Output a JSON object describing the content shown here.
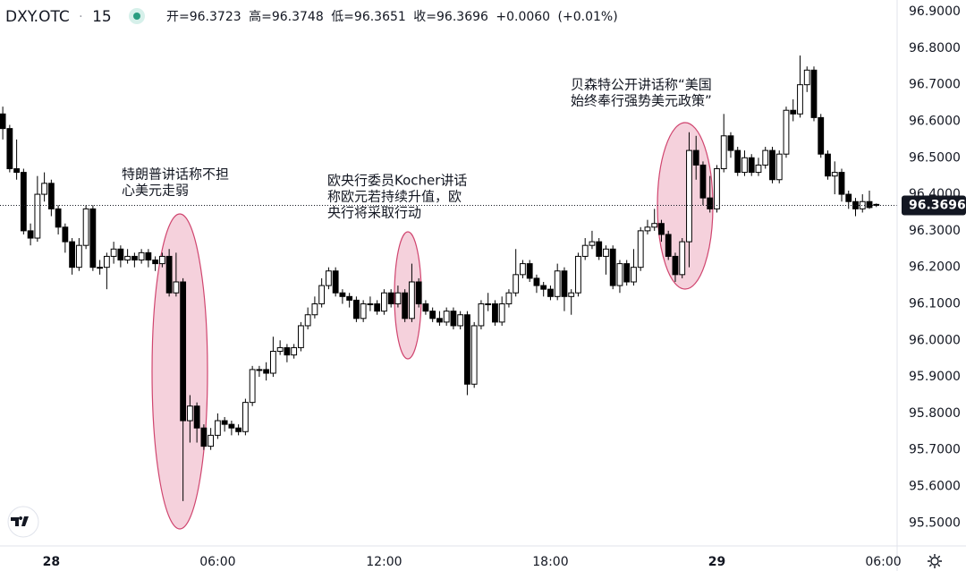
{
  "header": {
    "symbol": "DXY.OTC",
    "interval": "15",
    "open_label": "开=",
    "high_label": "高=",
    "low_label": "低=",
    "close_label": "收=",
    "change_label": "+0.0060",
    "change_pct_label": "(+0.01%)"
  },
  "chart_data": {
    "type": "candlestick",
    "x": [
      -1.75,
      -1.5,
      -1.25,
      -1,
      -0.75,
      -0.5,
      -0.25,
      0,
      0.25,
      0.5,
      0.75,
      1,
      1.25,
      1.5,
      1.75,
      2,
      2.25,
      2.5,
      2.75,
      3,
      3.25,
      3.5,
      3.75,
      4,
      4.25,
      4.5,
      4.75,
      5,
      5.25,
      5.5,
      5.75,
      6,
      6.25,
      6.5,
      6.75,
      7,
      7.25,
      7.5,
      7.75,
      8,
      8.25,
      8.5,
      8.75,
      9,
      9.25,
      9.5,
      9.75,
      10,
      10.25,
      10.5,
      10.75,
      11,
      11.25,
      11.5,
      11.75,
      12,
      12.25,
      12.5,
      12.75,
      13,
      13.25,
      13.5,
      13.75,
      14,
      14.25,
      14.5,
      14.75,
      15,
      15.25,
      15.5,
      15.75,
      16,
      16.25,
      16.5,
      16.75,
      17,
      17.25,
      17.5,
      17.75,
      18,
      18.25,
      18.5,
      18.75,
      19,
      19.25,
      19.5,
      19.75,
      20,
      20.25,
      20.5,
      20.75,
      21,
      21.25,
      21.5,
      21.75,
      22,
      22.25,
      22.5,
      22.75,
      23,
      23.25,
      23.5,
      23.75,
      24,
      24.25,
      24.5,
      24.75,
      25,
      25.25,
      25.5,
      25.75,
      26,
      26.25,
      26.5,
      26.75,
      27,
      27.25,
      27.5,
      27.75,
      28,
      28.25,
      28.5,
      28.75,
      29,
      29.25,
      29.5,
      29.75
    ],
    "open": [
      96.62,
      96.58,
      96.47,
      96.46,
      96.3,
      96.28,
      96.4,
      96.43,
      96.36,
      96.31,
      96.27,
      96.2,
      96.26,
      96.36,
      96.2,
      96.2,
      96.23,
      96.25,
      96.22,
      96.23,
      96.22,
      96.24,
      96.22,
      96.21,
      96.23,
      96.13,
      96.16,
      95.78,
      95.82,
      95.76,
      95.71,
      95.74,
      95.78,
      95.77,
      95.76,
      95.75,
      95.83,
      95.92,
      95.92,
      95.91,
      95.97,
      95.98,
      95.96,
      95.98,
      96.04,
      96.07,
      96.1,
      96.15,
      96.19,
      96.13,
      96.12,
      96.11,
      96.06,
      96.1,
      96.1,
      96.08,
      96.13,
      96.1,
      96.13,
      96.06,
      96.16,
      96.1,
      96.08,
      96.06,
      96.05,
      96.08,
      96.04,
      96.07,
      95.88,
      96.04,
      96.1,
      96.1,
      96.05,
      96.1,
      96.13,
      96.18,
      96.21,
      96.17,
      96.15,
      96.14,
      96.12,
      96.19,
      96.12,
      96.13,
      96.23,
      96.26,
      96.27,
      96.23,
      96.25,
      96.15,
      96.21,
      96.16,
      96.2,
      96.3,
      96.31,
      96.32,
      96.29,
      96.23,
      96.18,
      96.27,
      96.52,
      96.48,
      96.39,
      96.36,
      96.47,
      96.56,
      96.52,
      96.46,
      96.5,
      96.46,
      96.48,
      96.52,
      96.44,
      96.51,
      96.63,
      96.62,
      96.7,
      96.74,
      96.61,
      96.51,
      96.45,
      96.46,
      96.4,
      96.38,
      96.36,
      96.38,
      96.3723
    ],
    "high": [
      96.64,
      96.59,
      96.55,
      96.47,
      96.32,
      96.45,
      96.46,
      96.44,
      96.37,
      96.32,
      96.28,
      96.28,
      96.37,
      96.37,
      96.22,
      96.24,
      96.27,
      96.26,
      96.25,
      96.24,
      96.25,
      96.25,
      96.23,
      96.24,
      96.25,
      96.24,
      96.17,
      95.85,
      95.83,
      95.77,
      95.76,
      95.8,
      95.79,
      95.78,
      95.77,
      95.84,
      95.93,
      95.93,
      95.94,
      96.01,
      96.0,
      95.99,
      95.99,
      96.05,
      96.09,
      96.12,
      96.17,
      96.2,
      96.2,
      96.14,
      96.13,
      96.12,
      96.11,
      96.12,
      96.11,
      96.14,
      96.14,
      96.15,
      96.14,
      96.21,
      96.17,
      96.11,
      96.09,
      96.08,
      96.09,
      96.09,
      96.08,
      96.08,
      96.05,
      96.11,
      96.13,
      96.11,
      96.12,
      96.14,
      96.25,
      96.22,
      96.22,
      96.18,
      96.16,
      96.15,
      96.21,
      96.2,
      96.14,
      96.24,
      96.28,
      96.3,
      96.28,
      96.26,
      96.26,
      96.22,
      96.22,
      96.25,
      96.31,
      96.33,
      96.36,
      96.33,
      96.3,
      96.24,
      96.28,
      96.57,
      96.56,
      96.49,
      96.45,
      96.48,
      96.62,
      96.57,
      96.53,
      96.52,
      96.51,
      96.5,
      96.53,
      96.53,
      96.52,
      96.64,
      96.66,
      96.78,
      96.75,
      96.75,
      96.62,
      96.52,
      96.49,
      96.47,
      96.41,
      96.39,
      96.4,
      96.41,
      96.3748
    ],
    "low": [
      96.55,
      96.46,
      96.44,
      96.29,
      96.26,
      96.27,
      96.38,
      96.34,
      96.29,
      96.24,
      96.18,
      96.19,
      96.25,
      96.19,
      96.18,
      96.14,
      96.21,
      96.2,
      96.21,
      96.2,
      96.21,
      96.2,
      96.19,
      96.2,
      96.12,
      96.12,
      95.56,
      95.72,
      95.72,
      95.7,
      95.7,
      95.73,
      95.75,
      95.74,
      95.74,
      95.74,
      95.82,
      95.9,
      95.89,
      95.9,
      95.96,
      95.94,
      95.95,
      95.97,
      96.03,
      96.06,
      96.09,
      96.14,
      96.12,
      96.1,
      96.09,
      96.05,
      96.05,
      96.08,
      96.07,
      96.07,
      96.09,
      96.09,
      96.05,
      96.05,
      96.09,
      96.07,
      96.05,
      96.04,
      96.04,
      96.03,
      96.03,
      95.85,
      95.87,
      96.03,
      96.08,
      96.04,
      96.04,
      96.09,
      96.12,
      96.17,
      96.16,
      96.13,
      96.12,
      96.11,
      96.11,
      96.08,
      96.07,
      96.12,
      96.22,
      96.25,
      96.22,
      96.18,
      96.14,
      96.13,
      96.15,
      96.15,
      96.19,
      96.29,
      96.3,
      96.27,
      96.22,
      96.16,
      96.17,
      96.2,
      96.44,
      96.37,
      96.35,
      96.35,
      96.46,
      96.5,
      96.45,
      96.45,
      96.45,
      96.45,
      96.47,
      96.43,
      96.43,
      96.5,
      96.6,
      96.61,
      96.68,
      96.6,
      96.5,
      96.44,
      96.4,
      96.38,
      96.36,
      96.34,
      96.35,
      96.36,
      96.3651
    ],
    "close": [
      96.58,
      96.47,
      96.46,
      96.3,
      96.28,
      96.4,
      96.43,
      96.36,
      96.31,
      96.27,
      96.2,
      96.26,
      96.36,
      96.2,
      96.2,
      96.23,
      96.25,
      96.22,
      96.23,
      96.22,
      96.24,
      96.22,
      96.21,
      96.23,
      96.13,
      96.16,
      95.78,
      95.82,
      95.76,
      95.71,
      95.74,
      95.78,
      95.77,
      95.76,
      95.75,
      95.83,
      95.92,
      95.92,
      95.91,
      95.97,
      95.98,
      95.96,
      95.98,
      96.04,
      96.07,
      96.1,
      96.15,
      96.19,
      96.13,
      96.12,
      96.11,
      96.06,
      96.1,
      96.1,
      96.08,
      96.13,
      96.1,
      96.13,
      96.06,
      96.16,
      96.1,
      96.08,
      96.06,
      96.05,
      96.08,
      96.04,
      96.07,
      95.88,
      96.04,
      96.1,
      96.1,
      96.05,
      96.1,
      96.13,
      96.18,
      96.21,
      96.17,
      96.15,
      96.14,
      96.12,
      96.19,
      96.12,
      96.13,
      96.23,
      96.26,
      96.27,
      96.23,
      96.25,
      96.15,
      96.21,
      96.16,
      96.2,
      96.3,
      96.31,
      96.32,
      96.29,
      96.23,
      96.18,
      96.27,
      96.52,
      96.48,
      96.39,
      96.36,
      96.47,
      96.56,
      96.52,
      96.46,
      96.5,
      96.46,
      96.48,
      96.52,
      96.44,
      96.51,
      96.63,
      96.62,
      96.7,
      96.74,
      96.61,
      96.51,
      96.45,
      96.46,
      96.4,
      96.38,
      96.36,
      96.38,
      96.3636,
      96.3696
    ],
    "up_color": "#ffffff",
    "down_color": "#000000",
    "edge_color": "#000000",
    "xlim": [
      -1.85,
      30.5
    ],
    "xticks": [
      {
        "value": 0,
        "label": "28"
      },
      {
        "value": 6,
        "label": "06:00"
      },
      {
        "value": 12,
        "label": "12:00"
      },
      {
        "value": 18,
        "label": "18:00"
      },
      {
        "value": 24,
        "label": "29"
      },
      {
        "value": 30,
        "label": "06:00"
      }
    ],
    "ylim": [
      95.437,
      96.932
    ],
    "yticks": [
      {
        "value": 96.9,
        "label": "96.9000"
      },
      {
        "value": 96.8,
        "label": "96.8000"
      },
      {
        "value": 96.7,
        "label": "96.7000"
      },
      {
        "value": 96.6,
        "label": "96.6000"
      },
      {
        "value": 96.5,
        "label": "96.5000"
      },
      {
        "value": 96.4,
        "label": "96.4000"
      },
      {
        "value": 96.3,
        "label": "96.3000"
      },
      {
        "value": 96.2,
        "label": "96.2000"
      },
      {
        "value": 96.1,
        "label": "96.1000"
      },
      {
        "value": 96.0,
        "label": "96.0000"
      },
      {
        "value": 95.9,
        "label": "95.9000"
      },
      {
        "value": 95.8,
        "label": "95.8000"
      },
      {
        "value": 95.7,
        "label": "95.7000"
      },
      {
        "value": 95.6,
        "label": "95.6000"
      },
      {
        "value": 95.5,
        "label": "95.5000"
      }
    ],
    "grid": false,
    "annotations": [
      {
        "lines": [
          "特朗普讲话称不担",
          "心美元走弱"
        ]
      },
      {
        "lines": [
          "欧央行委员Kocher讲话",
          "称欧元若持续升值，欧",
          "央行将采取行动"
        ]
      },
      {
        "lines": [
          "贝森特公开讲话称“美国",
          "始终奉行强势美元政策”"
        ]
      }
    ]
  }
}
